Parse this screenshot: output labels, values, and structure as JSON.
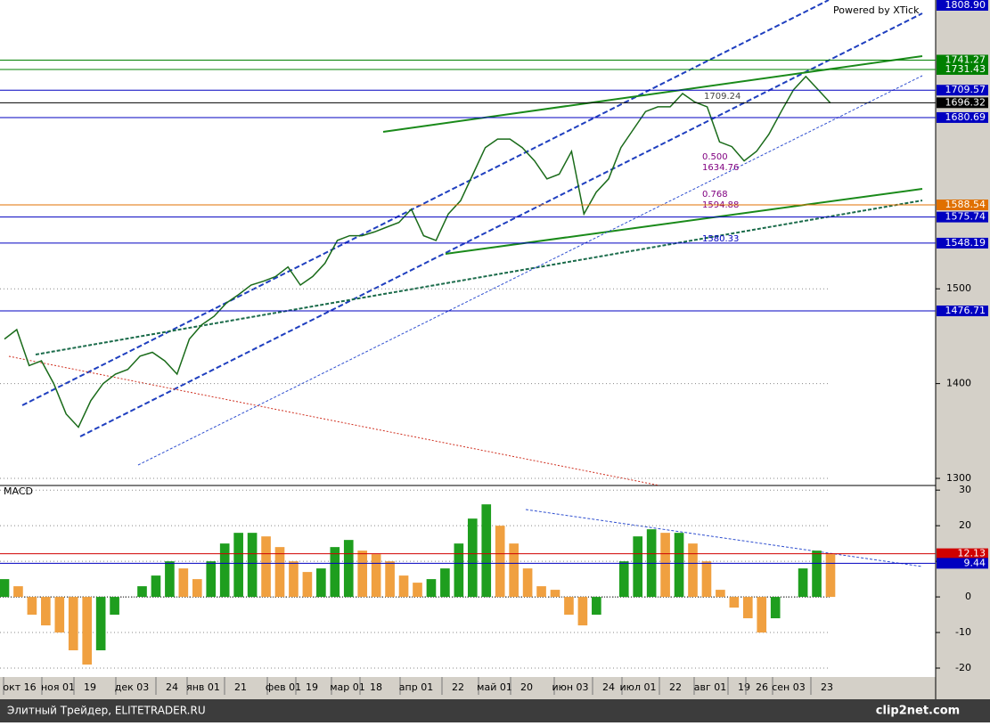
{
  "chart_data": [
    {
      "type": "line",
      "color": "#1a6b1a",
      "values": [
        1447,
        1457,
        1419,
        1424,
        1400,
        1368,
        1354,
        1382,
        1400,
        1410,
        1415,
        1429,
        1433,
        1424,
        1410,
        1447,
        1462,
        1471,
        1485,
        1494,
        1504,
        1508,
        1513,
        1523,
        1504,
        1513,
        1527,
        1551,
        1556,
        1556,
        1560,
        1565,
        1570,
        1584,
        1556,
        1551,
        1579,
        1593,
        1621,
        1649,
        1658,
        1658,
        1649,
        1635,
        1616,
        1621,
        1645,
        1579,
        1602,
        1616,
        1649,
        1668,
        1687,
        1692,
        1692,
        1706,
        1697,
        1692,
        1655,
        1650,
        1635,
        1645,
        1663,
        1687,
        1710,
        1724,
        1710,
        1696
      ],
      "ylim": [
        1292.5,
        1804.7
      ],
      "yticks": [
        1300,
        1400,
        1500
      ],
      "grid": true,
      "levels": [
        {
          "value": 1808.9,
          "label": "1808.90",
          "color": "#0000c0"
        },
        {
          "value": 1741.27,
          "color": "#008000"
        },
        {
          "value": 1731.43,
          "color": "#008000"
        },
        {
          "value": 1709.57,
          "color": "#0000c0"
        },
        {
          "value": 1696.32,
          "color": "#000000"
        },
        {
          "value": 1680.69,
          "color": "#0000c0"
        },
        {
          "value": 1588.54,
          "color": "#e07000"
        },
        {
          "value": 1575.74,
          "color": "#0000c0"
        },
        {
          "value": 1548.19,
          "color": "#0000c0"
        },
        {
          "value": 1476.71,
          "color": "#0000c0"
        }
      ],
      "annotations": [
        "Powered by XTick",
        "1709.24",
        "0.500",
        "1634.76",
        "0.768",
        "1594.88",
        "1580.33"
      ],
      "x_labels": [
        "окт 16",
        "ноя 01",
        "19",
        "дек 03",
        "24",
        "янв 01",
        "21",
        "фев 01",
        "19",
        "мар 01",
        "18",
        "апр 01",
        "22",
        "май 01",
        "20",
        "июн 03",
        "24",
        "июл 01",
        "22",
        "авг 01",
        "19",
        "26",
        "сен 03",
        "23"
      ]
    },
    {
      "type": "bar",
      "title": "MACD",
      "up_color": "#1e9e1e",
      "down_color": "#f0a040",
      "values": [
        5,
        3,
        -5,
        -8,
        -10,
        -15,
        -19,
        -15,
        -5,
        0,
        3,
        6,
        10,
        8,
        5,
        10,
        15,
        18,
        18,
        17,
        14,
        10,
        7,
        8,
        14,
        16,
        13,
        12,
        10,
        6,
        4,
        5,
        8,
        15,
        22,
        26,
        20,
        15,
        8,
        3,
        2,
        -5,
        -8,
        -5,
        0,
        10,
        17,
        19,
        18,
        18,
        15,
        10,
        2,
        -3,
        -6,
        -10,
        -6,
        0,
        8,
        13,
        12
      ],
      "ylim": [
        -22.5,
        31.3
      ],
      "yticks": [
        -20,
        -10,
        0,
        10,
        20,
        30
      ],
      "grid": true,
      "levels": [
        {
          "value": 12.13,
          "color": "#d00000"
        },
        {
          "value": 9.44,
          "color": "#0000c0"
        }
      ]
    }
  ],
  "footer": {
    "left": "Элитный Трейдер, ELITETRADER.RU",
    "right": "clip2net.com"
  }
}
